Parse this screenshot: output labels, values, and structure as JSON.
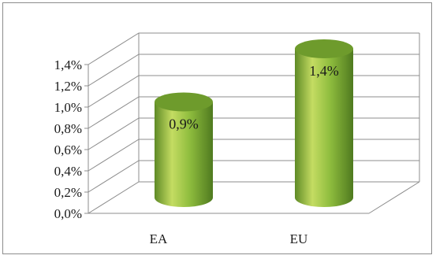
{
  "chart_data": {
    "type": "bar",
    "style": "3d-cylinder",
    "categories": [
      "EA",
      "EU"
    ],
    "values": [
      0.9,
      1.4
    ],
    "data_labels": [
      "0,9%",
      "1,4%"
    ],
    "y_ticks": [
      "0,0%",
      "0,2%",
      "0,4%",
      "0,6%",
      "0,8%",
      "1,0%",
      "1,2%",
      "1,4%"
    ],
    "ylim": [
      0,
      1.4
    ],
    "grid": true,
    "legend": "none",
    "colors": {
      "bar_light": "#c4dc62",
      "bar_mid": "#86b43a",
      "bar_dark": "#4f7a1f",
      "bar_top": "#6e9b2c",
      "grid": "#8c8c8c"
    }
  }
}
